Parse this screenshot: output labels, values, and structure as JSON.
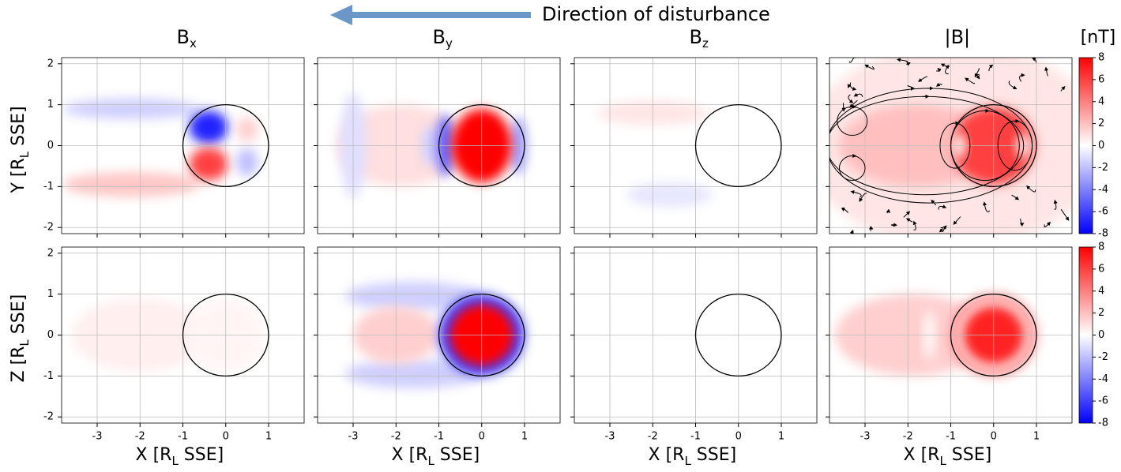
{
  "annotation": "Direction of disturbance",
  "chart_data": [
    {
      "type": "heatmap",
      "title": {
        "text": "B",
        "sub": "x"
      },
      "ylabel": {
        "text": "Y [R",
        "sub": "L",
        "tail": " SSE]"
      },
      "xlim": [
        -3.83,
        1.83
      ],
      "ylim": [
        -2.15,
        2.15
      ],
      "xticks": [
        -3,
        -2,
        -1,
        0,
        1
      ],
      "yticks": [
        -2,
        -1,
        0,
        1,
        2
      ],
      "xtick_labels": false,
      "ytick_labels": true,
      "grid": true,
      "colormap": "bwr",
      "clim": [
        -8,
        8
      ],
      "body_radius": 1,
      "features": [
        {
          "x": -2.2,
          "y": 0.9,
          "rx": 1.6,
          "ry": 0.25,
          "value": -1.5
        },
        {
          "x": -2.2,
          "y": -0.95,
          "rx": 1.6,
          "ry": 0.3,
          "value": 1.8
        },
        {
          "x": -0.4,
          "y": 0.45,
          "rx": 0.45,
          "ry": 0.4,
          "value": -7
        },
        {
          "x": -0.4,
          "y": -0.45,
          "rx": 0.45,
          "ry": 0.4,
          "value": 6
        },
        {
          "x": 0.5,
          "y": -0.4,
          "rx": 0.25,
          "ry": 0.35,
          "value": -2
        },
        {
          "x": 0.5,
          "y": 0.4,
          "rx": 0.25,
          "ry": 0.3,
          "value": 1.5
        }
      ]
    },
    {
      "type": "heatmap",
      "title": {
        "text": "B",
        "sub": "y"
      },
      "xlim": [
        -3.83,
        1.83
      ],
      "ylim": [
        -2.15,
        2.15
      ],
      "xticks": [
        -3,
        -2,
        -1,
        0,
        1
      ],
      "yticks": [
        -2,
        -1,
        0,
        1,
        2
      ],
      "xtick_labels": false,
      "ytick_labels": false,
      "grid": true,
      "colormap": "bwr",
      "clim": [
        -8,
        8
      ],
      "body_radius": 1,
      "features": [
        {
          "x": -1.9,
          "y": 0,
          "rx": 1.5,
          "ry": 1.0,
          "value": 1
        },
        {
          "x": -3.0,
          "y": 0,
          "rx": 0.3,
          "ry": 1.3,
          "value": -1
        },
        {
          "x": -1.2,
          "y": 0,
          "rx": 0.2,
          "ry": 0.5,
          "value": -1.5
        },
        {
          "x": -0.85,
          "y": 0,
          "rx": 0.2,
          "ry": 0.75,
          "value": -5
        },
        {
          "x": 0.85,
          "y": 0,
          "rx": 0.2,
          "ry": 0.7,
          "value": -3
        },
        {
          "x": 0,
          "y": 0,
          "rx": 0.7,
          "ry": 0.9,
          "value": 8
        }
      ]
    },
    {
      "type": "heatmap",
      "title": {
        "text": "B",
        "sub": "z"
      },
      "xlim": [
        -3.83,
        1.83
      ],
      "ylim": [
        -2.15,
        2.15
      ],
      "xticks": [
        -3,
        -2,
        -1,
        0,
        1
      ],
      "yticks": [
        -2,
        -1,
        0,
        1,
        2
      ],
      "xtick_labels": false,
      "ytick_labels": false,
      "grid": true,
      "colormap": "bwr",
      "clim": [
        -8,
        8
      ],
      "body_radius": 1,
      "features": [
        {
          "x": -2.0,
          "y": 0.8,
          "rx": 1.3,
          "ry": 0.3,
          "value": 0.8
        },
        {
          "x": -1.6,
          "y": -1.2,
          "rx": 1.0,
          "ry": 0.3,
          "value": -0.8
        }
      ]
    },
    {
      "type": "heatmap",
      "title": {
        "text": "|B|"
      },
      "xlim": [
        -3.83,
        1.83
      ],
      "ylim": [
        -2.15,
        2.15
      ],
      "xticks": [
        -3,
        -2,
        -1,
        0,
        1
      ],
      "yticks": [
        -2,
        -1,
        0,
        1,
        2
      ],
      "xtick_labels": false,
      "ytick_labels": false,
      "grid": true,
      "colormap": "bwr",
      "clim": [
        -8,
        8
      ],
      "body_radius": 1,
      "streamlines": true,
      "features": [
        {
          "x": -0.9,
          "y": 0,
          "rx": 3.5,
          "ry": 2.5,
          "value": 0.8
        },
        {
          "x": -1.8,
          "y": 0,
          "rx": 1.8,
          "ry": 1.0,
          "value": 2
        },
        {
          "x": 0,
          "y": 0,
          "rx": 0.95,
          "ry": 0.95,
          "value": 6
        },
        {
          "x": -0.8,
          "y": 0,
          "rx": 0.15,
          "ry": 0.3,
          "value": 0
        },
        {
          "x": 0.7,
          "y": 0,
          "rx": 0.15,
          "ry": 0.3,
          "value": 0
        }
      ],
      "colorbar": {
        "label": "[nT]",
        "ticks": [
          -8,
          -6,
          -4,
          -2,
          0,
          2,
          4,
          6,
          8
        ]
      }
    },
    {
      "type": "heatmap",
      "ylabel": {
        "text": "Z [R",
        "sub": "L",
        "tail": " SSE]"
      },
      "xlabel": {
        "text": "X [R",
        "sub": "L",
        "tail": " SSE]"
      },
      "xlim": [
        -3.83,
        1.83
      ],
      "ylim": [
        -2.15,
        2.15
      ],
      "xticks": [
        -3,
        -2,
        -1,
        0,
        1
      ],
      "yticks": [
        -2,
        -1,
        0,
        1,
        2
      ],
      "xtick_labels": true,
      "ytick_labels": true,
      "grid": true,
      "colormap": "bwr",
      "clim": [
        -8,
        8
      ],
      "body_radius": 1,
      "features": [
        {
          "x": -2.0,
          "y": 0,
          "rx": 1.6,
          "ry": 0.9,
          "value": 0.5
        },
        {
          "x": 0,
          "y": 0,
          "rx": 0.9,
          "ry": 0.9,
          "value": 0.3
        }
      ]
    },
    {
      "type": "heatmap",
      "xlabel": {
        "text": "X [R",
        "sub": "L",
        "tail": " SSE]"
      },
      "xlim": [
        -3.83,
        1.83
      ],
      "ylim": [
        -2.15,
        2.15
      ],
      "xticks": [
        -3,
        -2,
        -1,
        0,
        1
      ],
      "yticks": [
        -2,
        -1,
        0,
        1,
        2
      ],
      "xtick_labels": true,
      "ytick_labels": false,
      "grid": true,
      "colormap": "bwr",
      "clim": [
        -8,
        8
      ],
      "body_radius": 1,
      "features": [
        {
          "x": -1.6,
          "y": 0.95,
          "rx": 1.6,
          "ry": 0.35,
          "value": -1.5
        },
        {
          "x": -1.6,
          "y": -0.95,
          "rx": 1.6,
          "ry": 0.35,
          "value": -1.5
        },
        {
          "x": -2.0,
          "y": 0,
          "rx": 1.0,
          "ry": 0.7,
          "value": 1.5
        },
        {
          "x": 0,
          "y": 0,
          "rx": 1.0,
          "ry": 1.0,
          "value": -6
        },
        {
          "x": 0,
          "y": 0,
          "rx": 0.75,
          "ry": 0.75,
          "value": 8
        }
      ]
    },
    {
      "type": "heatmap",
      "xlabel": {
        "text": "X [R",
        "sub": "L",
        "tail": " SSE]"
      },
      "xlim": [
        -3.83,
        1.83
      ],
      "ylim": [
        -2.15,
        2.15
      ],
      "xticks": [
        -3,
        -2,
        -1,
        0,
        1
      ],
      "yticks": [
        -2,
        -1,
        0,
        1,
        2
      ],
      "xtick_labels": true,
      "ytick_labels": false,
      "grid": true,
      "colormap": "bwr",
      "clim": [
        -8,
        8
      ],
      "body_radius": 1,
      "features": []
    },
    {
      "type": "heatmap",
      "xlabel": {
        "text": "X [R",
        "sub": "L",
        "tail": " SSE]"
      },
      "xlim": [
        -3.83,
        1.83
      ],
      "ylim": [
        -2.15,
        2.15
      ],
      "xticks": [
        -3,
        -2,
        -1,
        0,
        1
      ],
      "yticks": [
        -2,
        -1,
        0,
        1,
        2
      ],
      "xtick_labels": true,
      "ytick_labels": false,
      "grid": true,
      "colormap": "bwr",
      "clim": [
        -8,
        8
      ],
      "body_radius": 1,
      "features": [
        {
          "x": -1.9,
          "y": 0,
          "rx": 1.8,
          "ry": 1.0,
          "value": 1.5
        },
        {
          "x": -1.5,
          "y": 0,
          "rx": 0.12,
          "ry": 0.6,
          "value": 0
        },
        {
          "x": 0,
          "y": 0,
          "rx": 1.0,
          "ry": 1.0,
          "value": 4
        },
        {
          "x": 0,
          "y": 0,
          "rx": 0.85,
          "ry": 0.85,
          "value": 0
        },
        {
          "x": 0,
          "y": 0,
          "rx": 0.72,
          "ry": 0.72,
          "value": 7
        }
      ],
      "colorbar": {
        "ticks": [
          -8,
          -6,
          -4,
          -2,
          0,
          2,
          4,
          6,
          8
        ]
      }
    }
  ]
}
